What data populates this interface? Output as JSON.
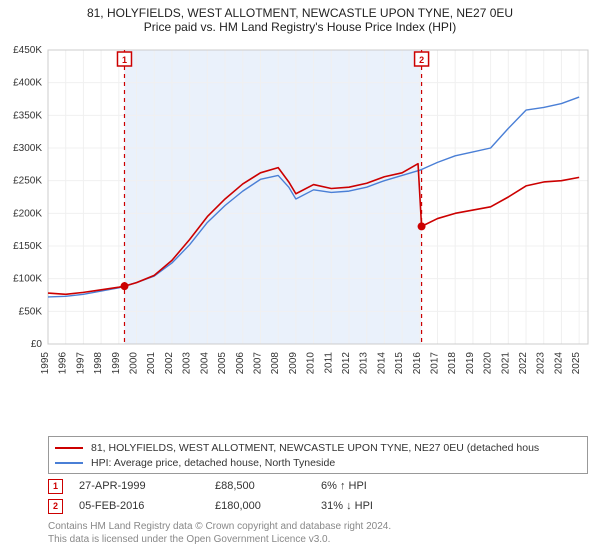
{
  "title": {
    "line1": "81, HOLYFIELDS, WEST ALLOTMENT, NEWCASTLE UPON TYNE, NE27 0EU",
    "line2": "Price paid vs. HM Land Registry's House Price Index (HPI)"
  },
  "chart": {
    "type": "line",
    "background_color": "#ffffff",
    "plot_bg_color": "#ffffff",
    "grid_color": "#f0f0f0",
    "xlim": [
      1995,
      2025.5
    ],
    "ylim": [
      0,
      450000
    ],
    "ytick_step": 50000,
    "yticks": [
      "£0",
      "£50K",
      "£100K",
      "£150K",
      "£200K",
      "£250K",
      "£300K",
      "£350K",
      "£400K",
      "£450K"
    ],
    "xticks": [
      1995,
      1996,
      1997,
      1998,
      1999,
      2000,
      2001,
      2002,
      2003,
      2004,
      2005,
      2006,
      2007,
      2008,
      2009,
      2010,
      2011,
      2012,
      2013,
      2014,
      2015,
      2016,
      2017,
      2018,
      2019,
      2020,
      2021,
      2022,
      2023,
      2024,
      2025
    ],
    "tick_fontsize": 10,
    "tick_color": "#333333",
    "shaded_band": {
      "from": 1999.32,
      "to": 2016.1,
      "fill": "#eaf1fb"
    },
    "marker_lines": [
      {
        "label": "1",
        "x": 1999.32,
        "color": "#cc0000",
        "dash": "4,4"
      },
      {
        "label": "2",
        "x": 2016.1,
        "color": "#cc0000",
        "dash": "4,4"
      }
    ],
    "marker_points": [
      {
        "x": 1999.32,
        "y": 88500,
        "color": "#cc0000"
      },
      {
        "x": 2016.1,
        "y": 180000,
        "color": "#cc0000"
      }
    ],
    "series": [
      {
        "id": "property",
        "color": "#cc0000",
        "width": 1.6,
        "data": [
          [
            1995,
            78000
          ],
          [
            1996,
            76000
          ],
          [
            1997,
            79000
          ],
          [
            1998,
            83000
          ],
          [
            1999,
            87000
          ],
          [
            1999.32,
            88500
          ],
          [
            2000,
            94000
          ],
          [
            2001,
            105000
          ],
          [
            2002,
            128000
          ],
          [
            2003,
            160000
          ],
          [
            2004,
            195000
          ],
          [
            2005,
            222000
          ],
          [
            2006,
            245000
          ],
          [
            2007,
            262000
          ],
          [
            2008,
            270000
          ],
          [
            2008.6,
            248000
          ],
          [
            2009,
            230000
          ],
          [
            2010,
            244000
          ],
          [
            2011,
            238000
          ],
          [
            2012,
            240000
          ],
          [
            2013,
            246000
          ],
          [
            2014,
            256000
          ],
          [
            2015,
            262000
          ],
          [
            2015.9,
            276000
          ],
          [
            2016.1,
            180000
          ],
          [
            2017,
            192000
          ],
          [
            2018,
            200000
          ],
          [
            2019,
            205000
          ],
          [
            2020,
            210000
          ],
          [
            2021,
            225000
          ],
          [
            2022,
            242000
          ],
          [
            2023,
            248000
          ],
          [
            2024,
            250000
          ],
          [
            2025,
            255000
          ]
        ]
      },
      {
        "id": "hpi",
        "color": "#4a7fd6",
        "width": 1.4,
        "data": [
          [
            1995,
            72000
          ],
          [
            1996,
            73000
          ],
          [
            1997,
            76000
          ],
          [
            1998,
            81000
          ],
          [
            1999,
            86000
          ],
          [
            2000,
            94000
          ],
          [
            2001,
            104000
          ],
          [
            2002,
            124000
          ],
          [
            2003,
            152000
          ],
          [
            2004,
            186000
          ],
          [
            2005,
            212000
          ],
          [
            2006,
            234000
          ],
          [
            2007,
            252000
          ],
          [
            2008,
            258000
          ],
          [
            2008.6,
            240000
          ],
          [
            2009,
            222000
          ],
          [
            2010,
            236000
          ],
          [
            2011,
            232000
          ],
          [
            2012,
            234000
          ],
          [
            2013,
            240000
          ],
          [
            2014,
            250000
          ],
          [
            2015,
            258000
          ],
          [
            2016,
            266000
          ],
          [
            2017,
            278000
          ],
          [
            2018,
            288000
          ],
          [
            2019,
            294000
          ],
          [
            2020,
            300000
          ],
          [
            2021,
            330000
          ],
          [
            2022,
            358000
          ],
          [
            2023,
            362000
          ],
          [
            2024,
            368000
          ],
          [
            2025,
            378000
          ]
        ]
      }
    ]
  },
  "legend": {
    "series1": "81, HOLYFIELDS, WEST ALLOTMENT, NEWCASTLE UPON TYNE, NE27 0EU (detached hous",
    "series2": "HPI: Average price, detached house, North Tyneside"
  },
  "events": [
    {
      "marker": "1",
      "date": "27-APR-1999",
      "price": "£88,500",
      "delta": "6% ↑ HPI"
    },
    {
      "marker": "2",
      "date": "05-FEB-2016",
      "price": "£180,000",
      "delta": "31% ↓ HPI"
    }
  ],
  "footer": {
    "line1": "Contains HM Land Registry data © Crown copyright and database right 2024.",
    "line2": "This data is licensed under the Open Government Licence v3.0."
  }
}
